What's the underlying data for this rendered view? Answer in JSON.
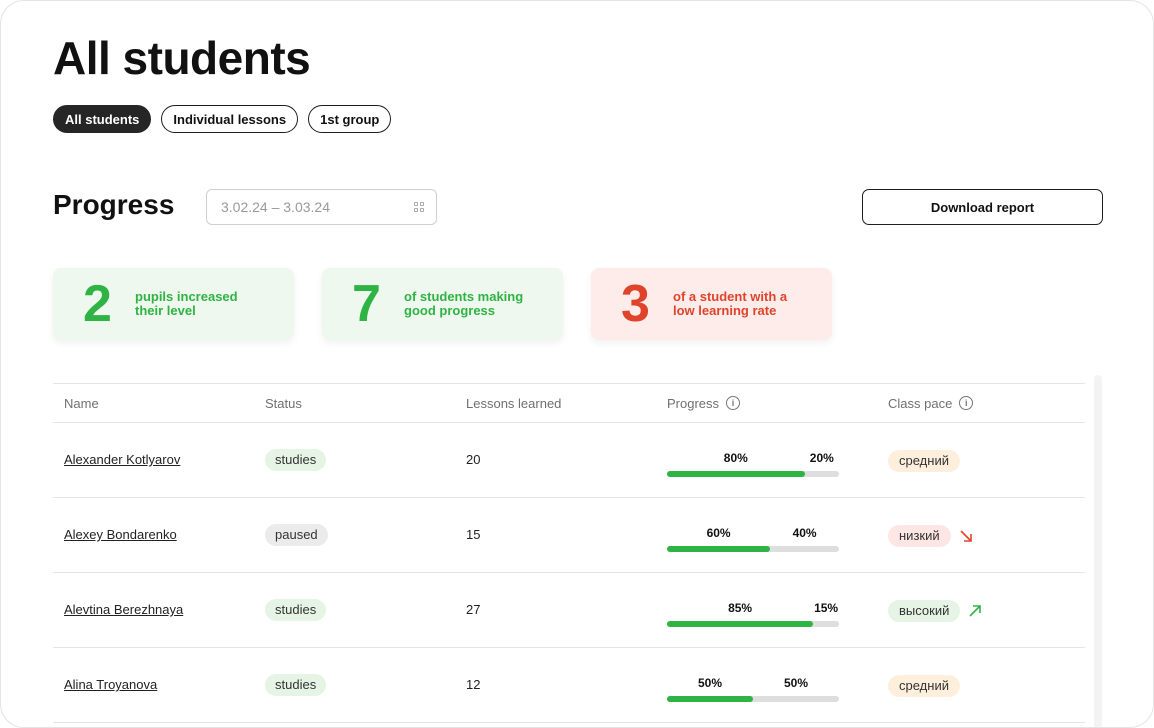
{
  "page": {
    "title": "All students"
  },
  "tabs": [
    {
      "label": "All students",
      "active": true
    },
    {
      "label": "Individual lessons",
      "active": false
    },
    {
      "label": "1st group",
      "active": false
    }
  ],
  "progress": {
    "title": "Progress",
    "date_range": "3.02.24 – 3.03.24",
    "download_label": "Download report"
  },
  "stats": [
    {
      "value": "2",
      "label": "pupils increased their level",
      "color": "#2fb344"
    },
    {
      "value": "7",
      "label": "of students making good progress",
      "color": "#2fb344"
    },
    {
      "value": "3",
      "label": "of a student with a low learning rate",
      "color": "#e0432b"
    }
  ],
  "table": {
    "headers": [
      "Name",
      "Status",
      "Lessons learned",
      "Progress",
      "Class pace"
    ],
    "rows": [
      {
        "name": "Alexander Kotlyarov",
        "status": "studies",
        "lessons": "20",
        "done": 80,
        "done_label": "80%",
        "left_label": "20%",
        "pace": "средний",
        "pace_level": "mid",
        "trend": ""
      },
      {
        "name": "Alexey Bondarenko",
        "status": "paused",
        "lessons": "15",
        "done": 60,
        "done_label": "60%",
        "left_label": "40%",
        "pace": "низкий",
        "pace_level": "low",
        "trend": "down"
      },
      {
        "name": "Alevtina Berezhnaya",
        "status": "studies",
        "lessons": "27",
        "done": 85,
        "done_label": "85%",
        "left_label": "15%",
        "pace": "высокий",
        "pace_level": "high",
        "trend": "up"
      },
      {
        "name": "Alina Troyanova",
        "status": "studies",
        "lessons": "12",
        "done": 50,
        "done_label": "50%",
        "left_label": "50%",
        "pace": "средний",
        "pace_level": "mid",
        "trend": ""
      }
    ]
  },
  "colors": {
    "accent_green": "#2fb344",
    "accent_red": "#e0432b"
  }
}
